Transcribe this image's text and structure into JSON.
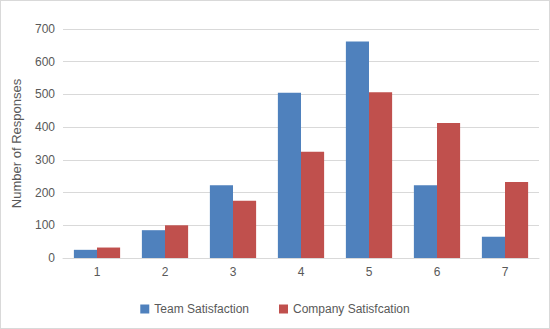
{
  "chart_data": {
    "type": "bar",
    "y_label": "Number of Responses",
    "categories": [
      "1",
      "2",
      "3",
      "4",
      "5",
      "6",
      "7"
    ],
    "series": [
      {
        "name": "Team Satisfaction",
        "color": "#4f81bd",
        "values": [
          25,
          85,
          222,
          505,
          662,
          222,
          65
        ]
      },
      {
        "name": "Company Satisfcation",
        "color": "#c0504d",
        "values": [
          32,
          100,
          175,
          325,
          507,
          413,
          232
        ]
      }
    ],
    "ylim": [
      0,
      700
    ],
    "yticks": [
      0,
      100,
      200,
      300,
      400,
      500,
      600,
      700
    ],
    "grid": true,
    "legend": "bottom"
  }
}
